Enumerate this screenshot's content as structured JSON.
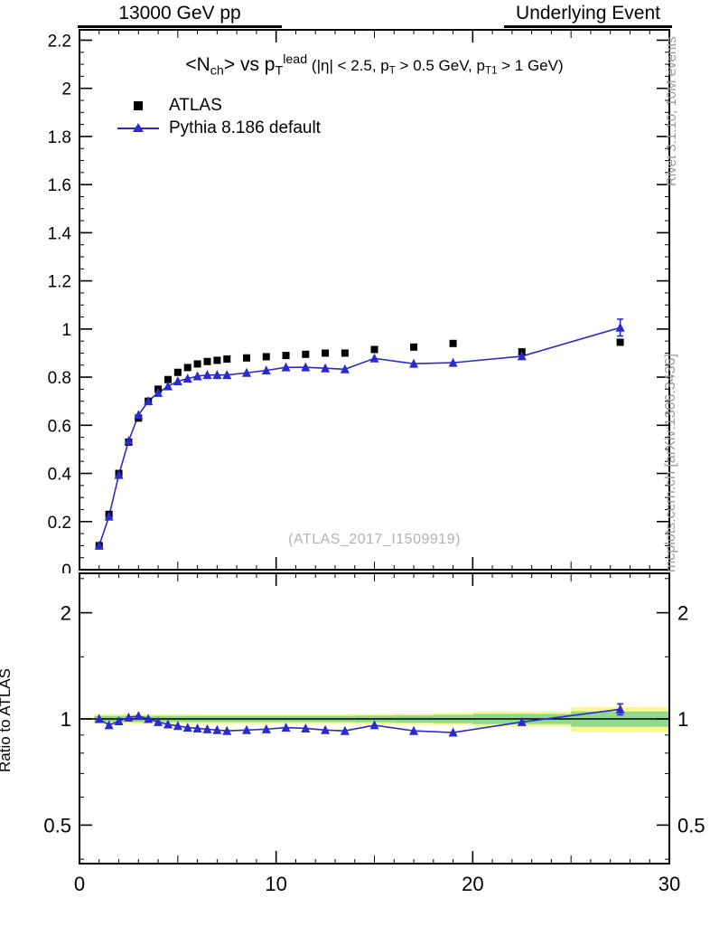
{
  "header": {
    "left": "13000 GeV pp",
    "right": "Underlying Event"
  },
  "right_margin": {
    "top": "Rivet 3.1.10, 10M events",
    "bottom": "mcplots.cern.ch [arXiv:1306.3436]"
  },
  "title": {
    "f1": "<N",
    "f1sub": "ch",
    "f2": "> vs p",
    "f2sub": "T",
    "f2sup": "lead",
    "f3": " (|η| < 2.5, p",
    "f3sub": "T",
    "f4": " > 0.5 GeV, p",
    "f4sub": "T1",
    "f5": " > 1 GeV)"
  },
  "legend": [
    {
      "label": "ATLAS",
      "marker": "black-square"
    },
    {
      "label": "Pythia 8.186 default",
      "marker": "blue-triangle-on-line"
    }
  ],
  "watermark": "(ATLAS_2017_I1509919)",
  "ratio_ylabel": "Ratio to ATLAS",
  "colors": {
    "atlas": "#000000",
    "pythia": "#2a2ad0",
    "band_yellow": "#f7f794",
    "band_green": "#8fd98f",
    "gray_text": "#9a9a9a"
  },
  "chart_data": {
    "type": "scatter",
    "subtype": "data-vs-mc with ratio panel",
    "title": "<N_ch> vs p_T^lead (|eta| < 2.5, p_T > 0.5 GeV, p_T1 > 1 GeV)",
    "grid": "off",
    "legend_position": "top-left",
    "x": [
      1,
      1.5,
      2,
      2.5,
      3,
      3.5,
      4,
      4.5,
      5,
      5.5,
      6,
      6.5,
      7,
      7.5,
      8.5,
      9.5,
      10.5,
      11.5,
      12.5,
      13.5,
      15,
      17,
      19,
      22.5,
      27.5
    ],
    "series": [
      {
        "name": "ATLAS",
        "marker": "square",
        "color": "#000000",
        "values": [
          0.1,
          0.23,
          0.4,
          0.53,
          0.63,
          0.7,
          0.75,
          0.79,
          0.82,
          0.84,
          0.855,
          0.865,
          0.87,
          0.875,
          0.88,
          0.885,
          0.89,
          0.895,
          0.9,
          0.9,
          0.915,
          0.925,
          0.94,
          0.905,
          0.945
        ]
      },
      {
        "name": "Pythia 8.186 default",
        "marker": "triangle",
        "color": "#2a2ad0",
        "values": [
          0.1,
          0.221,
          0.394,
          0.535,
          0.643,
          0.7,
          0.735,
          0.762,
          0.783,
          0.794,
          0.804,
          0.809,
          0.809,
          0.809,
          0.818,
          0.828,
          0.841,
          0.841,
          0.837,
          0.833,
          0.878,
          0.856,
          0.86,
          0.887,
          1.006
        ],
        "errors": [
          0.003,
          0.003,
          0.003,
          0.003,
          0.003,
          0.003,
          0.003,
          0.003,
          0.003,
          0.003,
          0.003,
          0.003,
          0.003,
          0.003,
          0.003,
          0.004,
          0.004,
          0.004,
          0.005,
          0.005,
          0.005,
          0.006,
          0.008,
          0.012,
          0.035
        ]
      }
    ],
    "ratio": {
      "reference": "ATLAS",
      "values": [
        1.0,
        0.96,
        0.985,
        1.01,
        1.02,
        1.0,
        0.98,
        0.965,
        0.955,
        0.945,
        0.94,
        0.935,
        0.93,
        0.925,
        0.93,
        0.935,
        0.945,
        0.94,
        0.93,
        0.925,
        0.96,
        0.925,
        0.915,
        0.98,
        1.065
      ],
      "errors": [
        0.008,
        0.008,
        0.007,
        0.007,
        0.006,
        0.006,
        0.006,
        0.006,
        0.006,
        0.006,
        0.006,
        0.006,
        0.006,
        0.006,
        0.006,
        0.007,
        0.007,
        0.008,
        0.008,
        0.009,
        0.009,
        0.01,
        0.012,
        0.015,
        0.038
      ],
      "bin_edges": [
        0.75,
        1.25,
        1.75,
        2.25,
        2.75,
        3.25,
        3.75,
        4.25,
        4.75,
        5.25,
        5.75,
        6.25,
        6.75,
        7.25,
        8,
        9,
        10,
        11,
        12,
        13,
        14,
        16,
        18,
        20,
        25,
        30
      ],
      "band_yellow": [
        0.032,
        0.032,
        0.032,
        0.032,
        0.032,
        0.032,
        0.032,
        0.032,
        0.032,
        0.032,
        0.032,
        0.032,
        0.032,
        0.032,
        0.032,
        0.032,
        0.032,
        0.032,
        0.032,
        0.032,
        0.034,
        0.036,
        0.04,
        0.05,
        0.08
      ],
      "band_green": [
        0.02,
        0.02,
        0.02,
        0.02,
        0.02,
        0.02,
        0.02,
        0.02,
        0.02,
        0.02,
        0.02,
        0.02,
        0.02,
        0.02,
        0.02,
        0.02,
        0.02,
        0.02,
        0.02,
        0.02,
        0.022,
        0.024,
        0.027,
        0.033,
        0.05
      ]
    },
    "top_axis": {
      "xlim": [
        0,
        30
      ],
      "ylim": [
        0,
        2.243
      ],
      "x_minor_step": 1,
      "y_minor_step": 0.05,
      "xticks": [
        {
          "v": 0,
          "label": "0"
        },
        {
          "v": 10,
          "label": "10"
        },
        {
          "v": 20,
          "label": "20"
        },
        {
          "v": 30,
          "label": "30"
        }
      ],
      "yticks": [
        {
          "v": 0,
          "label": "0"
        },
        {
          "v": 0.2,
          "label": "0.2"
        },
        {
          "v": 0.4,
          "label": "0.4"
        },
        {
          "v": 0.6,
          "label": "0.6"
        },
        {
          "v": 0.8,
          "label": "0.8"
        },
        {
          "v": 1,
          "label": "1"
        },
        {
          "v": 1.2,
          "label": "1.2"
        },
        {
          "v": 1.4,
          "label": "1.4"
        },
        {
          "v": 1.6,
          "label": "1.6"
        },
        {
          "v": 1.8,
          "label": "1.8"
        },
        {
          "v": 2,
          "label": "2"
        },
        {
          "v": 2.2,
          "label": "2.2"
        }
      ]
    },
    "ratio_axis": {
      "scale": "log",
      "ylim": [
        0.389,
        2.57
      ],
      "yticks": [
        {
          "v": 0.5,
          "label": "0.5"
        },
        {
          "v": 1,
          "label": "1"
        },
        {
          "v": 2,
          "label": "2"
        }
      ],
      "yminor": [
        0.4,
        0.6,
        0.7,
        0.8,
        0.9,
        1.5,
        2.5
      ]
    }
  }
}
